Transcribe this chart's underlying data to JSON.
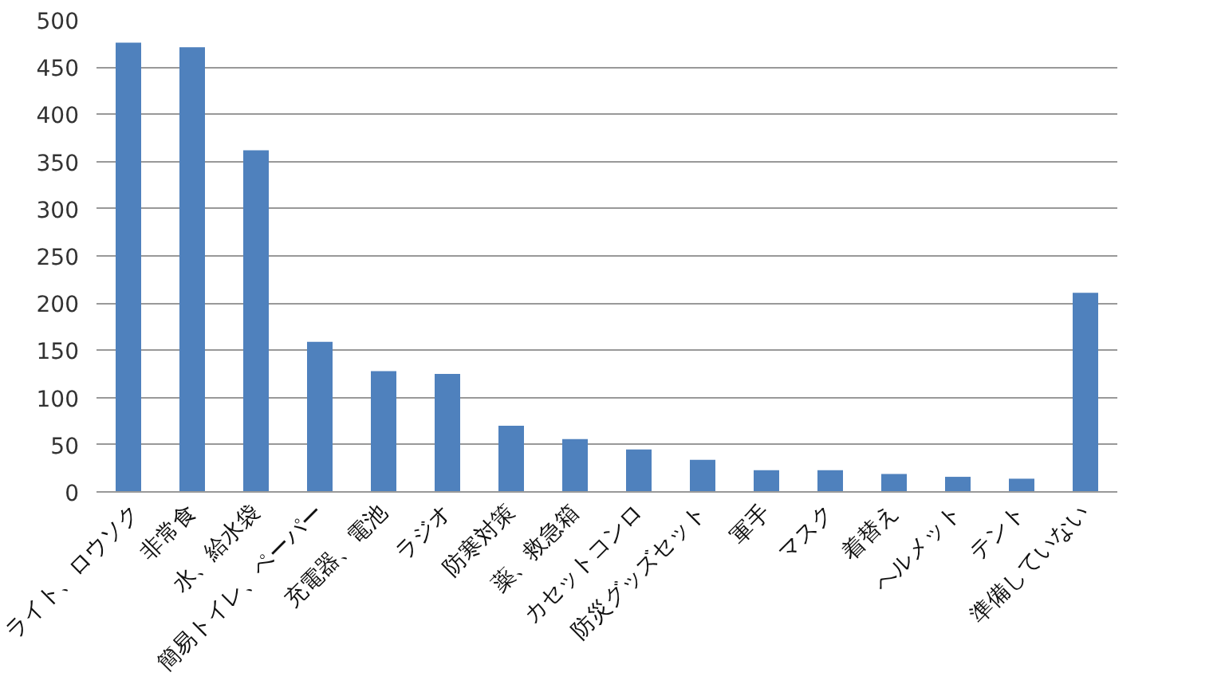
{
  "chart_data": {
    "type": "bar",
    "categories": [
      "ライト、ロウソク",
      "非常食",
      "水、給水袋",
      "簡易トイレ、ペーパー",
      "充電器、電池",
      "ラジオ",
      "防寒対策",
      "薬、救急箱",
      "カセットコンロ",
      "防災グッズセット",
      "軍手",
      "マスク",
      "着替え",
      "ヘルメット",
      "テント",
      "準備していない"
    ],
    "values": [
      476,
      471,
      362,
      159,
      128,
      125,
      70,
      56,
      45,
      34,
      23,
      23,
      19,
      16,
      14,
      211
    ],
    "color": "#4f81bd",
    "ylim": [
      0,
      500
    ],
    "yticks": [
      0,
      50,
      100,
      150,
      200,
      250,
      300,
      350,
      400,
      450,
      500
    ],
    "grid": "y"
  }
}
